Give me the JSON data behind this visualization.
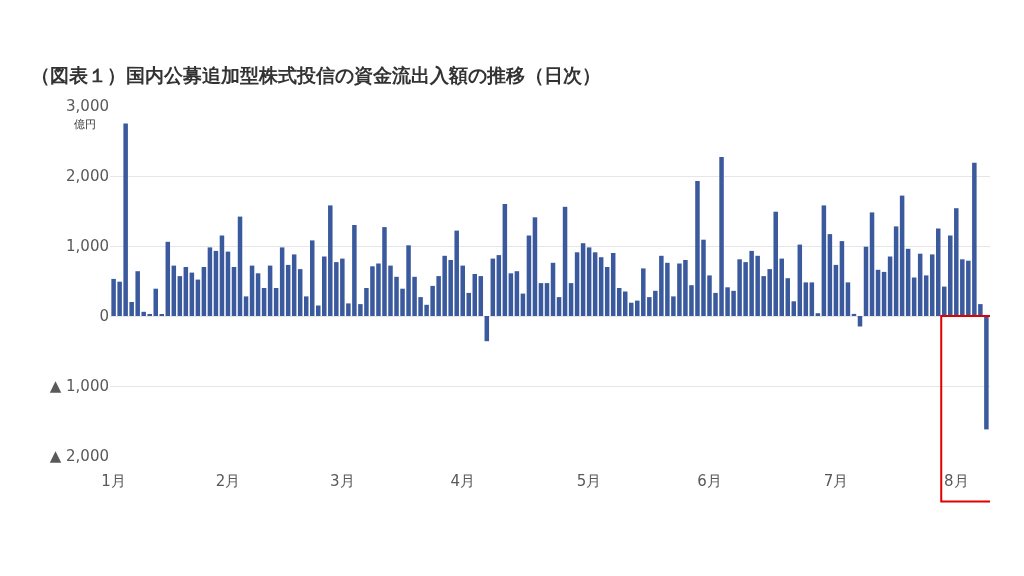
{
  "chart_data": {
    "type": "bar",
    "title": "（図表１）国内公募追加型株式投信の資金流出入額の推移（日次）",
    "ylabel": "億円",
    "categories": [
      "1月",
      null,
      null,
      null,
      null,
      null,
      null,
      null,
      null,
      null,
      null,
      null,
      null,
      null,
      null,
      null,
      null,
      null,
      null,
      "2月",
      null,
      null,
      null,
      null,
      null,
      null,
      null,
      null,
      null,
      null,
      null,
      null,
      null,
      null,
      null,
      null,
      null,
      null,
      "3月",
      null,
      null,
      null,
      null,
      null,
      null,
      null,
      null,
      null,
      null,
      null,
      null,
      null,
      null,
      null,
      null,
      null,
      null,
      null,
      "4月",
      null,
      null,
      null,
      null,
      null,
      null,
      null,
      null,
      null,
      null,
      null,
      null,
      null,
      null,
      null,
      null,
      null,
      null,
      null,
      null,
      "5月",
      null,
      null,
      null,
      null,
      null,
      null,
      null,
      null,
      null,
      null,
      null,
      null,
      null,
      null,
      null,
      null,
      null,
      null,
      null,
      "6月",
      null,
      null,
      null,
      null,
      null,
      null,
      null,
      null,
      null,
      null,
      null,
      null,
      null,
      null,
      null,
      null,
      null,
      null,
      null,
      null,
      "7月",
      null,
      null,
      null,
      null,
      null,
      null,
      null,
      null,
      null,
      null,
      null,
      null,
      null,
      null,
      null,
      null,
      null,
      null,
      null,
      "8月",
      null,
      null,
      null,
      null,
      null
    ],
    "values": [
      530,
      490,
      2750,
      200,
      640,
      60,
      20,
      390,
      20,
      1060,
      720,
      570,
      700,
      620,
      520,
      700,
      980,
      930,
      1150,
      920,
      700,
      1420,
      280,
      720,
      610,
      400,
      720,
      400,
      980,
      730,
      880,
      670,
      280,
      1080,
      150,
      850,
      1580,
      770,
      820,
      180,
      1300,
      170,
      400,
      710,
      750,
      1270,
      720,
      560,
      390,
      1010,
      560,
      270,
      160,
      430,
      570,
      860,
      800,
      1220,
      720,
      330,
      600,
      570,
      -360,
      820,
      870,
      1600,
      610,
      640,
      320,
      1150,
      1410,
      470,
      470,
      760,
      270,
      1560,
      470,
      910,
      1040,
      980,
      910,
      840,
      700,
      900,
      400,
      350,
      190,
      220,
      680,
      270,
      360,
      860,
      760,
      280,
      750,
      800,
      440,
      1930,
      1090,
      580,
      330,
      2270,
      410,
      360,
      810,
      770,
      930,
      860,
      570,
      670,
      1490,
      820,
      540,
      210,
      1020,
      480,
      480,
      40,
      1580,
      1170,
      730,
      1070,
      480,
      30,
      -150,
      990,
      1480,
      660,
      630,
      850,
      1280,
      1720,
      960,
      550,
      890,
      580,
      880,
      1250,
      420,
      1150,
      1540,
      810,
      790,
      2190,
      170,
      -1620
    ],
    "color": "#3b5a9d",
    "ylim": [
      -2000,
      3000
    ],
    "yticks": [
      {
        "value": -2000,
        "label": "▲ 2,000"
      },
      {
        "value": -1000,
        "label": "▲ 1,000"
      },
      0,
      {
        "value": 1000,
        "label": "1,000"
      },
      {
        "value": 2000,
        "label": "2,000"
      },
      {
        "value": 3000,
        "label": "3,000"
      }
    ],
    "grid": "y"
  }
}
